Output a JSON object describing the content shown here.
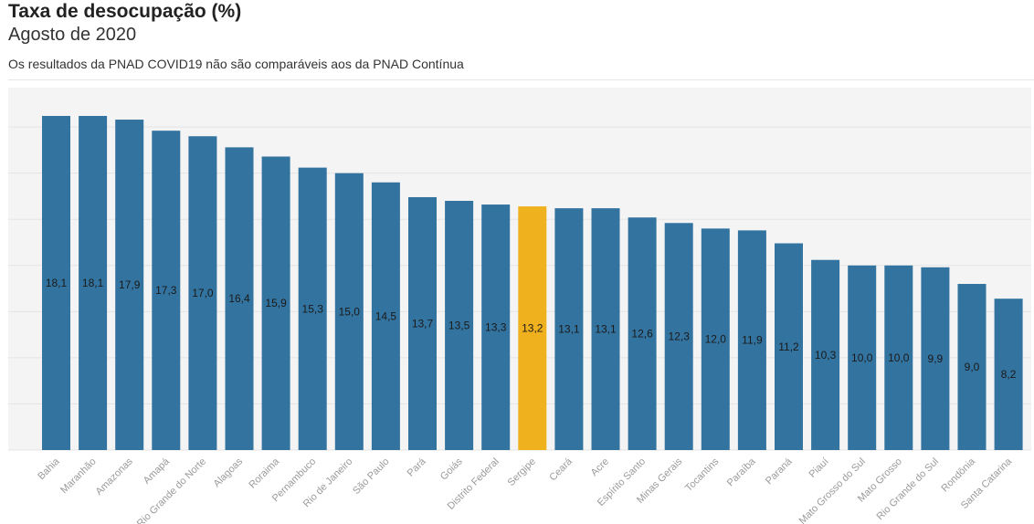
{
  "header": {
    "title": "Taxa de desocupação (%)",
    "subtitle": "Agosto de 2020",
    "note": "Os resultados da PNAD COVID19 não são comparáveis aos da PNAD Contínua"
  },
  "colors": {
    "bar": "#33739f",
    "highlight": "#f0b11f",
    "plot_background": "#f4f4f4",
    "grid": "#e4e4e4",
    "bar_label": "#1a1a1a",
    "tick_label": "#9a9a9a"
  },
  "chart_data": {
    "type": "bar",
    "title": "Taxa de desocupação (%)",
    "subtitle": "Agosto de 2020",
    "categories": [
      "Bahia",
      "Maranhão",
      "Amazonas",
      "Amapá",
      "Rio Grande do Norte",
      "Alagoas",
      "Roraima",
      "Pernambuco",
      "Rio de Janeiro",
      "São Paulo",
      "Pará",
      "Goiás",
      "Distrito Federal",
      "Sergipe",
      "Ceará",
      "Acre",
      "Espírito Santo",
      "Minas Gerais",
      "Tocantins",
      "Paraíba",
      "Paraná",
      "Piauí",
      "Mato Grosso do Sul",
      "Mato Grosso",
      "Rio Grande do Sul",
      "Rondônia",
      "Santa Catarina"
    ],
    "values": [
      18.1,
      18.1,
      17.9,
      17.3,
      17.0,
      16.4,
      15.9,
      15.3,
      15.0,
      14.5,
      13.7,
      13.5,
      13.3,
      13.2,
      13.1,
      13.1,
      12.6,
      12.3,
      12.0,
      11.9,
      11.2,
      10.3,
      10.0,
      10.0,
      9.9,
      9.0,
      8.2
    ],
    "value_labels": [
      "18,1",
      "18,1",
      "17,9",
      "17,3",
      "17,0",
      "16,4",
      "15,9",
      "15,3",
      "15,0",
      "14,5",
      "13,7",
      "13,5",
      "13,3",
      "13,2",
      "13,1",
      "13,1",
      "12,6",
      "12,3",
      "12,0",
      "11,9",
      "11,2",
      "10,3",
      "10,0",
      "10,0",
      "9,9",
      "9,0",
      "8,2"
    ],
    "highlight_category": "Sergipe",
    "ylim": [
      0,
      18.1
    ],
    "grid": true,
    "legend": "none",
    "xlabel": "",
    "ylabel": ""
  }
}
